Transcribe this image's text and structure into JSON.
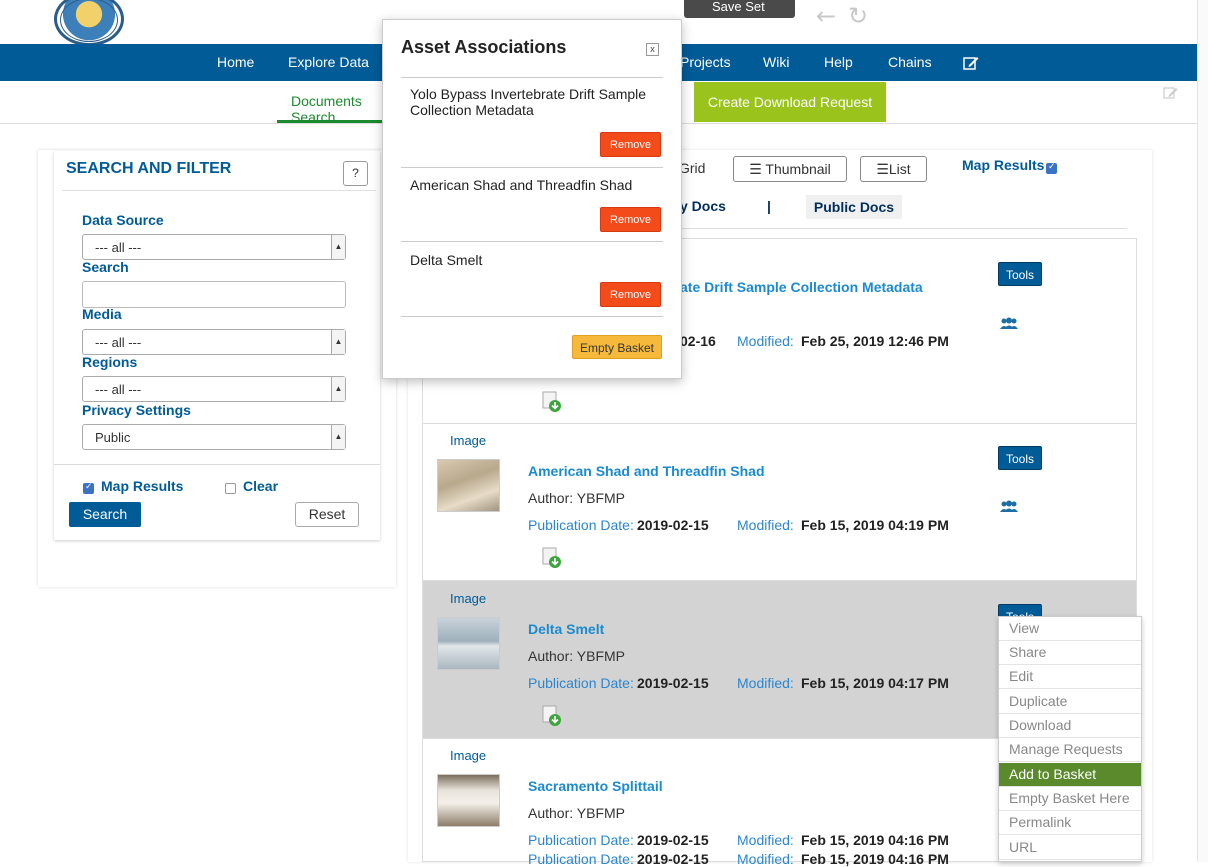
{
  "topbar": {
    "save_label": "Save Set",
    "back_icon": "arrow-left-icon",
    "refresh_icon": "refresh-icon"
  },
  "nav": {
    "items": [
      "Home",
      "Explore Data",
      "Projects",
      "Wiki",
      "Help",
      "Chains"
    ],
    "edit_icon": "edit-icon"
  },
  "subnav": {
    "active_tab": "Documents Search",
    "create_download": "Create Download Request"
  },
  "filter": {
    "title": "SEARCH AND FILTER",
    "help": "?",
    "data_source_label": "Data Source",
    "data_source_value": "--- all ---",
    "search_label": "Search",
    "search_value": "",
    "media_label": "Media",
    "media_value": "--- all ---",
    "regions_label": "Regions",
    "regions_value": "--- all ---",
    "privacy_label": "Privacy Settings",
    "privacy_value": "Public",
    "map_results_label": "Map Results",
    "map_results_checked": true,
    "clear_label": "Clear",
    "clear_checked": false,
    "search_button": "Search",
    "reset_button": "Reset"
  },
  "views": {
    "grid": "Grid",
    "thumbnail": "Thumbnail",
    "list": "List",
    "map_results": "Map Results",
    "my_docs": "y Docs",
    "divider": "|",
    "public_docs": "Public Docs"
  },
  "results": [
    {
      "title": "ate Drift Sample Collection Metadata",
      "pub_value": "02-16",
      "mod_label": "Modified:",
      "mod_value": "Feb 25, 2019 12:46 PM",
      "tools": "Tools"
    },
    {
      "media": "Image",
      "title": "American Shad and Threadfin Shad",
      "author": "Author: YBFMP",
      "pub_label": "Publication Date:",
      "pub_value": "2019-02-15",
      "mod_label": "Modified:",
      "mod_value": "Feb 15, 2019 04:19 PM",
      "tools": "Tools"
    },
    {
      "media": "Image",
      "title": "Delta Smelt",
      "author": "Author: YBFMP",
      "pub_label": "Publication Date:",
      "pub_value": "2019-02-15",
      "mod_label": "Modified:",
      "mod_value": "Feb 15, 2019 04:17 PM",
      "tools": "Tools"
    },
    {
      "media": "Image",
      "title": "Sacramento Splittail",
      "author": "Author: YBFMP",
      "pub_label": "Publication Date:",
      "pub_value": "2019-02-15",
      "mod_label": "Modified:",
      "mod_value": "Feb 15, 2019 04:16 PM",
      "pub_value_next": "2019-02-15",
      "mod_value_next": "Feb 15, 2019 04:16 PM"
    }
  ],
  "tools_menu": [
    "View",
    "Share",
    "Edit",
    "Duplicate",
    "Download",
    "Manage Requests",
    "Add to Basket",
    "Empty Basket Here",
    "Permalink",
    "URL"
  ],
  "tools_menu_active": "Add to Basket",
  "modal": {
    "title": "Asset Associations",
    "close": "x",
    "items": [
      "Yolo Bypass Invertebrate Drift Sample Collection Metadata",
      "American Shad and Threadfin Shad",
      "Delta Smelt"
    ],
    "remove_label": "Remove",
    "empty_label": "Empty Basket"
  },
  "colors": {
    "nav_blue": "#005b96",
    "accent_green": "#9ac31c",
    "remove_red": "#f44b1b",
    "empty_orange": "#f6b93b",
    "menu_active": "#5b8a2d"
  }
}
